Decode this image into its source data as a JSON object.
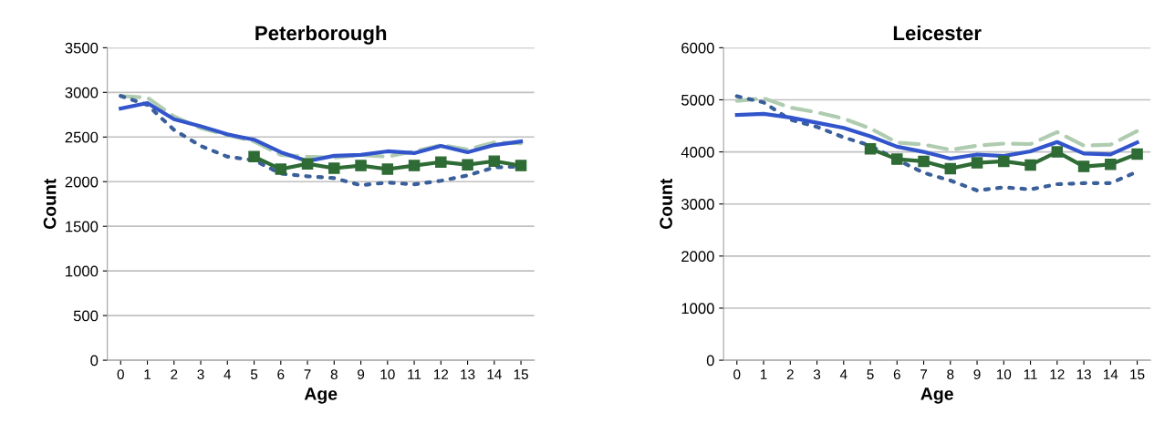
{
  "chart_data": [
    {
      "type": "line",
      "title": "Peterborough",
      "xlabel": "Age",
      "ylabel": "Count",
      "categories": [
        "0",
        "1",
        "2",
        "3",
        "4",
        "5",
        "6",
        "7",
        "8",
        "9",
        "10",
        "11",
        "12",
        "13",
        "14",
        "15"
      ],
      "ylim": [
        0,
        3500
      ],
      "yticks": [
        0,
        500,
        1000,
        1500,
        2000,
        2500,
        3000,
        3500
      ],
      "grid": "y",
      "series": [
        {
          "color": "#b0ccb0",
          "line_style": "dashed",
          "marker": "none",
          "values": [
            2960,
            2940,
            2730,
            2600,
            2520,
            2450,
            2300,
            2280,
            2270,
            2300,
            2280,
            2340,
            2410,
            2360,
            2440,
            2430
          ]
        },
        {
          "color": "#3a5f9a",
          "line_style": "dotted",
          "marker": "none",
          "values": [
            2960,
            2860,
            2580,
            2400,
            2280,
            2240,
            2090,
            2060,
            2040,
            1960,
            1990,
            1970,
            2010,
            2070,
            2160,
            2170
          ]
        },
        {
          "color": "#3355cc",
          "line_style": "solid",
          "marker": "none",
          "values": [
            2820,
            2880,
            2700,
            2620,
            2530,
            2470,
            2330,
            2230,
            2290,
            2300,
            2340,
            2320,
            2400,
            2330,
            2410,
            2450
          ]
        },
        {
          "color": "#2e6b35",
          "line_style": "solid",
          "marker": "square",
          "values": [
            null,
            null,
            null,
            null,
            null,
            2280,
            2140,
            2200,
            2150,
            2180,
            2140,
            2180,
            2220,
            2190,
            2230,
            2180
          ]
        }
      ]
    },
    {
      "type": "line",
      "title": "Leicester",
      "xlabel": "Age",
      "ylabel": "Count",
      "categories": [
        "0",
        "1",
        "2",
        "3",
        "4",
        "5",
        "6",
        "7",
        "8",
        "9",
        "10",
        "11",
        "12",
        "13",
        "14",
        "15"
      ],
      "ylim": [
        0,
        6000
      ],
      "yticks": [
        0,
        1000,
        2000,
        3000,
        4000,
        5000,
        6000
      ],
      "grid": "y",
      "series": [
        {
          "color": "#b0ccb0",
          "line_style": "dashed",
          "marker": "none",
          "values": [
            4980,
            5030,
            4850,
            4760,
            4640,
            4450,
            4180,
            4140,
            4040,
            4120,
            4160,
            4150,
            4380,
            4120,
            4140,
            4400
          ]
        },
        {
          "color": "#3a5f9a",
          "line_style": "dotted",
          "marker": "none",
          "values": [
            5070,
            4950,
            4620,
            4480,
            4280,
            4120,
            3850,
            3600,
            3450,
            3260,
            3320,
            3280,
            3380,
            3400,
            3400,
            3620
          ]
        },
        {
          "color": "#3355cc",
          "line_style": "solid",
          "marker": "none",
          "values": [
            4710,
            4730,
            4660,
            4560,
            4460,
            4300,
            4100,
            4000,
            3870,
            3950,
            3920,
            4010,
            4190,
            3970,
            3950,
            4180
          ]
        },
        {
          "color": "#2e6b35",
          "line_style": "solid",
          "marker": "square",
          "values": [
            null,
            null,
            null,
            null,
            null,
            4060,
            3860,
            3820,
            3680,
            3790,
            3820,
            3750,
            4000,
            3720,
            3760,
            3960
          ]
        }
      ]
    }
  ]
}
